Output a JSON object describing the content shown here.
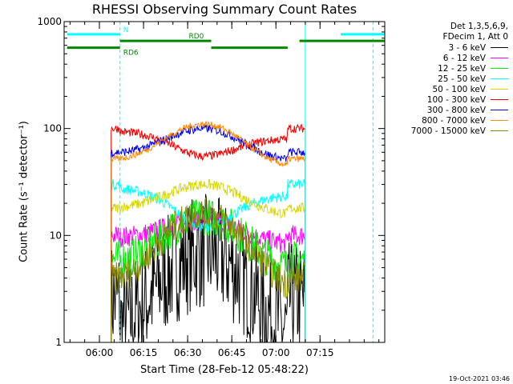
{
  "chart_data": {
    "type": "line",
    "title": "RHESSI Observing Summary Count Rates",
    "xlabel": "Start Time (28-Feb-12 05:48:22)",
    "ylabel": "Count Rate (s⁻¹ detector⁻¹)",
    "timestamp": "19-Oct-2021 03:46",
    "ylim": [
      1,
      1000
    ],
    "yscale": "log",
    "xlim_min": [
      -12,
      97
    ],
    "x_ticks": [
      {
        "min": 0,
        "label": "06:00"
      },
      {
        "min": 15,
        "label": "06:15"
      },
      {
        "min": 30,
        "label": "06:30"
      },
      {
        "min": 45,
        "label": "06:45"
      },
      {
        "min": 60,
        "label": "07:00"
      },
      {
        "min": 75,
        "label": "07:15"
      }
    ],
    "y_ticks": [
      {
        "value": 1,
        "label": "1"
      },
      {
        "value": 10,
        "label": "10"
      },
      {
        "value": 100,
        "label": "100"
      },
      {
        "value": 1000,
        "label": "1000"
      }
    ],
    "legend": {
      "header": [
        "Det 1,3,5,6,9,",
        "FDecim 1, Att 0"
      ],
      "entries": [
        {
          "label": "3 - 6 keV",
          "color": "#000000"
        },
        {
          "label": "6 - 12 keV",
          "color": "#ff00ff"
        },
        {
          "label": "12 - 25 keV",
          "color": "#00ee00"
        },
        {
          "label": "25 - 50 keV",
          "color": "#00ffff"
        },
        {
          "label": "50 - 100 keV",
          "color": "#d8d800"
        },
        {
          "label": "100 - 300 keV",
          "color": "#ee0000"
        },
        {
          "label": "300 - 800 keV",
          "color": "#0000ee"
        },
        {
          "label": "800 - 7000 keV",
          "color": "#ff8800"
        },
        {
          "label": "7000 - 15000 keV",
          "color": "#888800"
        }
      ]
    },
    "flags": [
      {
        "label": "N",
        "color": "#00ffff",
        "value": 760,
        "segments": [
          [
            -11,
            7
          ],
          [
            82,
            97
          ]
        ]
      },
      {
        "label": "RD0",
        "color": "#008800",
        "value": 660,
        "segments": [
          [
            7,
            38
          ],
          [
            68,
            97
          ]
        ]
      },
      {
        "label": "RD6",
        "color": "#008800",
        "value": 570,
        "segments": [
          [
            -11,
            7
          ],
          [
            38,
            64
          ]
        ]
      }
    ],
    "vlines_min": [
      {
        "t": -12,
        "color": "#00ffff",
        "style": "solid"
      },
      {
        "t": 7,
        "color": "#00ffff",
        "style": "dash"
      },
      {
        "t": 70,
        "color": "#00ffff",
        "style": "solid"
      },
      {
        "t": 93,
        "color": "#00ffff",
        "style": "dash"
      }
    ],
    "series": [
      {
        "name": "3 - 6 keV",
        "color": "#000000",
        "start": 4,
        "end": 70,
        "gap_start": 7,
        "gap_end": 64,
        "day_level": 2.5,
        "shoulder": 1.2,
        "peak": 7,
        "noise": 0.55
      },
      {
        "name": "6 - 12 keV",
        "color": "#ff00ff",
        "start": 4,
        "end": 70,
        "gap_start": 7,
        "gap_end": 64,
        "day_level": 10,
        "shoulder": 9.5,
        "peak": 14,
        "noise": 0.1
      },
      {
        "name": "12 - 25 keV",
        "color": "#00ee00",
        "start": 4,
        "end": 70,
        "gap_start": 7,
        "gap_end": 64,
        "day_level": 6,
        "shoulder": 5.5,
        "peak": 15,
        "noise": 0.18
      },
      {
        "name": "25 - 50 keV",
        "color": "#00ffff",
        "start": 4,
        "end": 70,
        "gap_start": 7,
        "gap_end": 64,
        "day_level": 30,
        "shoulder": 28,
        "peak": 12,
        "noise": 0.05
      },
      {
        "name": "50 - 100 keV",
        "color": "#d8d800",
        "start": 4,
        "end": 70,
        "gap_start": 7,
        "gap_end": 64,
        "day_level": 18,
        "shoulder": 18,
        "peak": 30,
        "noise": 0.05
      },
      {
        "name": "100 - 300 keV",
        "color": "#ee0000",
        "start": 4,
        "end": 70,
        "gap_start": 7,
        "gap_end": 64,
        "day_level": 100,
        "shoulder": 95,
        "peak": 55,
        "noise": 0.04
      },
      {
        "name": "300 - 800 keV",
        "color": "#0000ee",
        "start": 4,
        "end": 70,
        "gap_start": 7,
        "gap_end": 64,
        "day_level": 60,
        "shoulder": 58,
        "peak": 100,
        "noise": 0.04
      },
      {
        "name": "800 - 7000 keV",
        "color": "#ff8800",
        "start": 4,
        "end": 70,
        "gap_start": 7,
        "gap_end": 64,
        "day_level": 52,
        "shoulder": 50,
        "peak": 110,
        "noise": 0.03
      },
      {
        "name": "7000 - 15000 keV",
        "color": "#888800",
        "start": 4,
        "end": 70,
        "gap_start": 7,
        "gap_end": 64,
        "day_level": 4,
        "shoulder": 3.5,
        "peak": 16,
        "noise": 0.15
      }
    ]
  }
}
